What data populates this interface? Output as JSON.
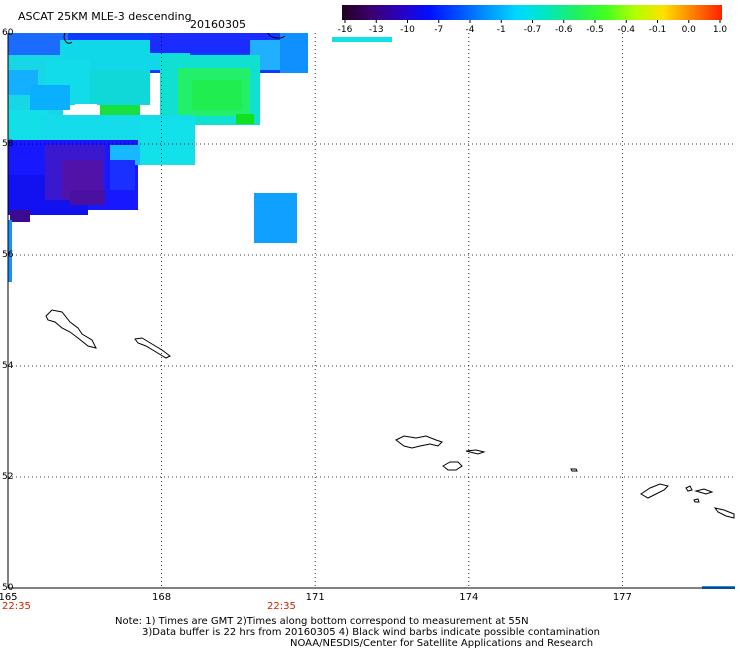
{
  "header": {
    "title": "ASCAT 25KM MLE-3 descending",
    "date": "20160305"
  },
  "colorbar": {
    "labels": [
      "-16",
      "-13",
      "-10",
      "-7",
      "-4",
      "-1",
      "-0.7",
      "-0.6",
      "-0.5",
      "-0.4",
      "-0.1",
      "0.0",
      "1.0"
    ]
  },
  "map": {
    "lon_min": 165,
    "lon_max": 179.2,
    "lat_min": 50,
    "lat_max": 60,
    "lon_ticks": [
      "165",
      "168",
      "171",
      "174",
      "177"
    ],
    "lat_ticks": [
      "60",
      "58",
      "56",
      "54",
      "52",
      "50"
    ],
    "time_labels": [
      "22:35",
      "22:35"
    ],
    "time_color": "#cc2200"
  },
  "notes": {
    "line1": "Note: 1) Times are GMT 2)Times along bottom correspond to measurement at 55N",
    "line2": "3)Data buffer is 22 hrs from 20160305 4) Black wind barbs indicate possible contamination",
    "line3": "NOAA/NESDIS/Center for Satellite Applications and Research"
  }
}
